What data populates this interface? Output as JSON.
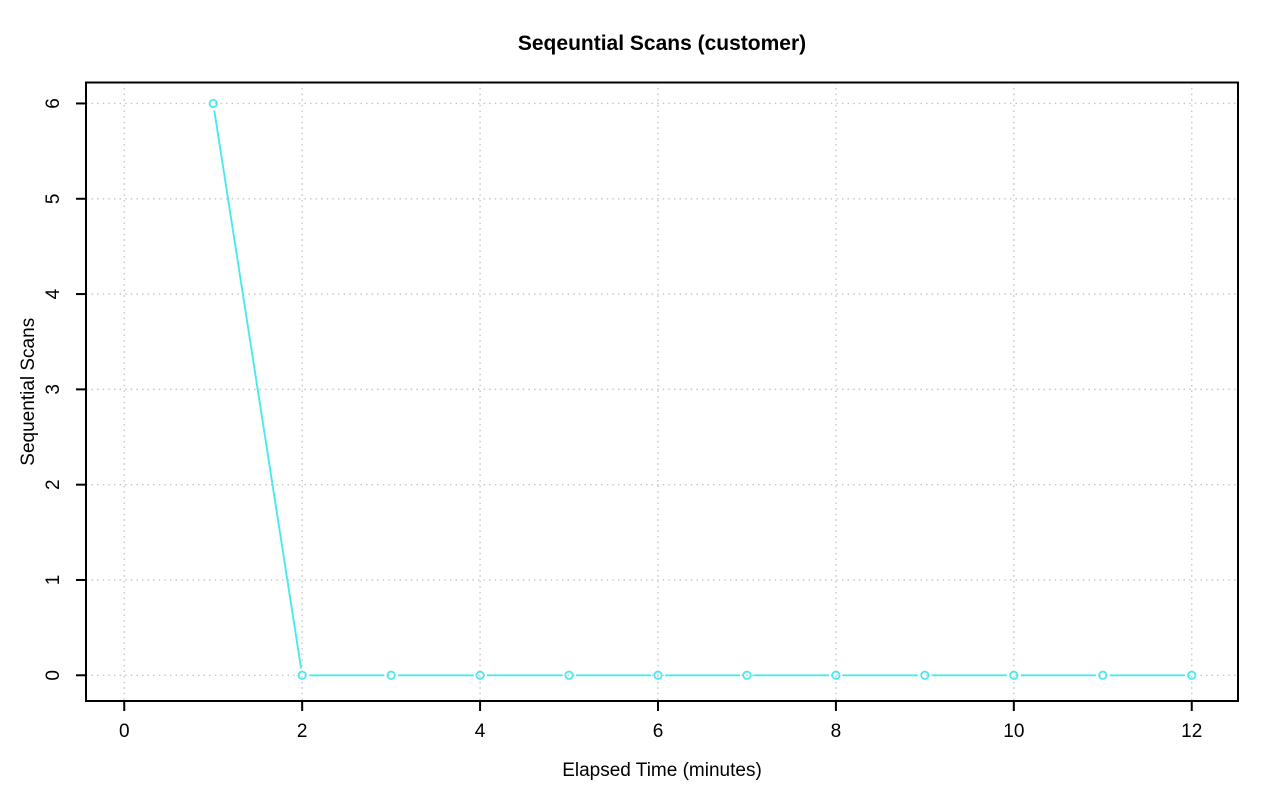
{
  "chart_data": {
    "type": "line",
    "title": "Seqeuntial Scans (customer)",
    "xlabel": "Elapsed Time (minutes)",
    "ylabel": "Sequential Scans",
    "x": [
      1,
      2,
      3,
      4,
      5,
      6,
      7,
      8,
      9,
      10,
      11,
      12
    ],
    "y": [
      6,
      0,
      0,
      0,
      0,
      0,
      0,
      0,
      0,
      0,
      0,
      0
    ],
    "x_ticks": [
      0,
      2,
      4,
      6,
      8,
      10,
      12
    ],
    "y_ticks": [
      0,
      1,
      2,
      3,
      4,
      5,
      6
    ],
    "xlim": [
      -0.43,
      12.52
    ],
    "ylim": [
      -0.27,
      6.22
    ],
    "grid": "dotted",
    "legend": "none",
    "marker": "open-circle",
    "line_type": "both-line-and-marker-with-gaps",
    "colors": {
      "series": "#4AE9F0",
      "grid": "#C2C2C2",
      "axis": "#000000",
      "text": "#000000",
      "background": "#FFFFFF"
    }
  }
}
